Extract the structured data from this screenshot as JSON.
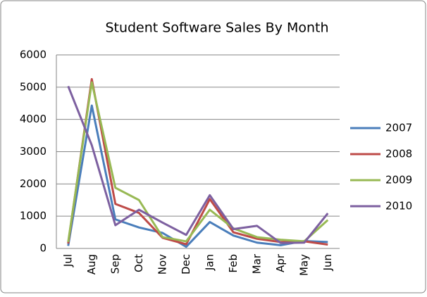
{
  "chart_data": {
    "type": "line",
    "title": "Student Software Sales By Month",
    "categories": [
      "Jul",
      "Aug",
      "Sep",
      "Oct",
      "Nov",
      "Dec",
      "Jan",
      "Feb",
      "Mar",
      "Apr",
      "May",
      "Jun"
    ],
    "series": [
      {
        "name": "2007",
        "color": "#4a7ebb",
        "values": [
          80,
          4430,
          900,
          650,
          480,
          50,
          820,
          400,
          180,
          100,
          230,
          200
        ]
      },
      {
        "name": "2008",
        "color": "#be4b48",
        "values": [
          150,
          5250,
          1380,
          1100,
          330,
          130,
          1530,
          500,
          300,
          200,
          220,
          120
        ]
      },
      {
        "name": "2009",
        "color": "#98b954",
        "values": [
          200,
          5150,
          1880,
          1500,
          350,
          220,
          1200,
          620,
          350,
          270,
          220,
          880
        ]
      },
      {
        "name": "2010",
        "color": "#7d60a0",
        "values": [
          5030,
          3200,
          720,
          1200,
          800,
          420,
          1650,
          600,
          700,
          170,
          180,
          1090
        ]
      }
    ],
    "ylim": [
      0,
      6000
    ],
    "yticks": [
      0,
      1000,
      2000,
      3000,
      4000,
      5000,
      6000
    ],
    "grid": true,
    "legend": "right"
  }
}
